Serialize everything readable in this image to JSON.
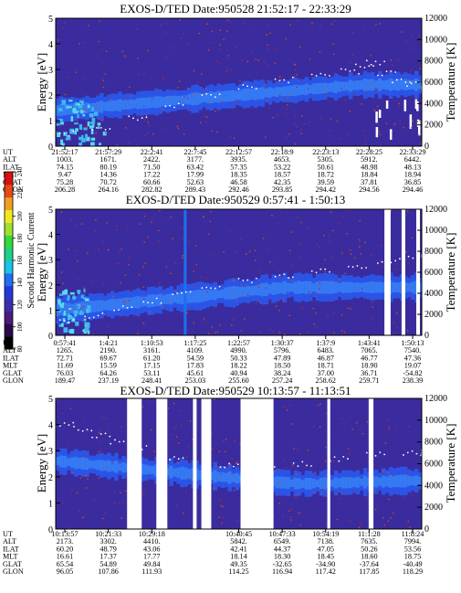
{
  "chart_data": [
    {
      "type": "heatmap",
      "title": "EXOS-D/TED  Date:950528  21:52:17 - 22:33:29",
      "ylabel": "Energy [eV]",
      "ylabel_right": "Temperature [K]",
      "ylim": [
        0,
        5
      ],
      "y_ticks": [
        "0",
        "1",
        "2",
        "3",
        "4",
        "5"
      ],
      "y2lim": [
        0,
        12000
      ],
      "y2_ticks": [
        "0",
        "2000",
        "4000",
        "6000",
        "8000",
        "10000",
        "12000"
      ],
      "ephemeris": {
        "labels": [
          "UT",
          "ALT",
          "ILAT",
          "MLT",
          "GLAT",
          "GLON"
        ],
        "columns": [
          [
            "21:52:17",
            "1003.",
            "74.15",
            "9.47",
            "75.28",
            "206.28"
          ],
          [
            "21:57:29",
            "1671.",
            "80.19",
            "14.36",
            "70.72",
            "264.16"
          ],
          [
            "22:2:41",
            "2422.",
            "71.50",
            "17.22",
            "60.66",
            "282.82"
          ],
          [
            "22:7:45",
            "3177.",
            "63.42",
            "17.99",
            "52.63",
            "289.43"
          ],
          [
            "22:12:57",
            "3935.",
            "57.35",
            "18.35",
            "46.58",
            "292.46"
          ],
          [
            "22:18:9",
            "4653.",
            "53.22",
            "18.57",
            "42.35",
            "293.85"
          ],
          [
            "22:23:13",
            "5305.",
            "50.61",
            "18.72",
            "39.59",
            "294.42"
          ],
          [
            "22:28:25",
            "5912.",
            "48.98",
            "18.84",
            "37.81",
            "294.56"
          ],
          [
            "22:33:29",
            "6442.",
            "48.13",
            "18.94",
            "36.85",
            "294.46"
          ]
        ]
      },
      "temperature_trace_k": [
        [
          0.0,
          1200
        ],
        [
          0.1,
          1500
        ],
        [
          0.2,
          2700
        ],
        [
          0.3,
          3800
        ],
        [
          0.4,
          4800
        ],
        [
          0.5,
          5500
        ],
        [
          0.6,
          6200
        ],
        [
          0.7,
          6700
        ],
        [
          0.78,
          7000
        ],
        [
          0.82,
          7500
        ],
        [
          0.85,
          7800
        ],
        [
          0.88,
          6800
        ],
        [
          0.92,
          6200
        ],
        [
          0.96,
          5800
        ],
        [
          1.0,
          5300
        ]
      ]
    },
    {
      "type": "heatmap",
      "title": "EXOS-D/TED  Date:950529  0:57:41 - 1:50:13",
      "ylabel": "Energy [eV]",
      "ylabel_right": "Temperature [K]",
      "ylim": [
        0,
        5
      ],
      "y_ticks": [
        "0",
        "1",
        "2",
        "3",
        "4",
        "5"
      ],
      "y2lim": [
        0,
        12000
      ],
      "y2_ticks": [
        "0",
        "2000",
        "4000",
        "6000",
        "8000",
        "10000",
        "12000"
      ],
      "ephemeris": {
        "labels": [
          "UT",
          "ALT",
          "ILAT",
          "MLT",
          "GLAT",
          "GLON"
        ],
        "columns": [
          [
            "0:57:41",
            "1265.",
            "72.71",
            "11.69",
            "76.03",
            "189.47"
          ],
          [
            "1:4:21",
            "2190.",
            "69.67",
            "15.59",
            "64.26",
            "237.19"
          ],
          [
            "1:10:53",
            "3161.",
            "61.20",
            "17.15",
            "53.11",
            "248.41"
          ],
          [
            "1:17:25",
            "4109.",
            "54.59",
            "17.83",
            "45.61",
            "253.03"
          ],
          [
            "1:22:57",
            "4990.",
            "50.33",
            "18.22",
            "40.94",
            "255.60"
          ],
          [
            "1:30:37",
            "5796.",
            "47.89",
            "18.50",
            "38.24",
            "257.24"
          ],
          [
            "1:37:9",
            "6483.",
            "46.87",
            "18.71",
            "37.00",
            "258.62"
          ],
          [
            "1:43:41",
            "7065.",
            "46.77",
            "18.90",
            "36.71",
            "259.71"
          ],
          [
            "1:50:13",
            "7540.",
            "47.36",
            "19.07",
            "-54.82",
            "238.39"
          ]
        ]
      },
      "temperature_trace_k": [
        [
          0.0,
          1400
        ],
        [
          0.08,
          1900
        ],
        [
          0.16,
          2600
        ],
        [
          0.24,
          3300
        ],
        [
          0.32,
          4000
        ],
        [
          0.4,
          4600
        ],
        [
          0.5,
          5200
        ],
        [
          0.6,
          5700
        ],
        [
          0.7,
          6100
        ],
        [
          0.8,
          6600
        ],
        [
          0.88,
          7000
        ],
        [
          0.94,
          7400
        ],
        [
          1.0,
          7600
        ]
      ]
    },
    {
      "type": "heatmap",
      "title": "EXOS-D/TED  Date:950529  10:13:57 - 11:13:51",
      "ylabel": "Energy [eV]",
      "ylabel_right": "Temperature [K]",
      "ylim": [
        0,
        5
      ],
      "y_ticks": [
        "0",
        "1",
        "2",
        "3",
        "4",
        "5"
      ],
      "y2lim": [
        0,
        12000
      ],
      "y2_ticks": [
        "0",
        "2000",
        "4000",
        "6000",
        "8000",
        "10000",
        "12000"
      ],
      "ephemeris": {
        "labels": [
          "UT",
          "ALT",
          "ILAT",
          "MLT",
          "GLAT",
          "GLON"
        ],
        "columns": [
          [
            "10:13:57",
            "2173.",
            "60.20",
            "16.61",
            "65.54",
            "96.05"
          ],
          [
            "10:21:33",
            "3302.",
            "48.79",
            "17.37",
            "54.89",
            "107.86"
          ],
          [
            "10:29:18",
            "4410.",
            "43.06",
            "17.77",
            "49.84",
            "111.93"
          ],
          [
            "",
            "",
            "",
            "",
            "",
            ""
          ],
          [
            "10:40:45",
            "5842.",
            "42.41",
            "18.14",
            "49.35",
            "114.25"
          ],
          [
            "10:47:33",
            "6549.",
            "44.37",
            "18.30",
            "-32.65",
            "116.94"
          ],
          [
            "10:54:19",
            "7138.",
            "47.05",
            "18.45",
            "-34.90",
            "117.42"
          ],
          [
            "11:1:28",
            "7635.",
            "50.26",
            "18.60",
            "-37.64",
            "117.85"
          ],
          [
            "11:8:24",
            "7994.",
            "53.56",
            "18.75",
            "-40.49",
            "118.29"
          ]
        ]
      },
      "temperature_trace_k": [
        [
          0.0,
          9600
        ],
        [
          0.05,
          9200
        ],
        [
          0.1,
          8600
        ],
        [
          0.15,
          8000
        ],
        [
          0.2,
          7400
        ],
        [
          0.3,
          6600
        ],
        [
          0.45,
          5800
        ],
        [
          0.55,
          5600
        ],
        [
          0.65,
          6000
        ],
        [
          0.75,
          6400
        ],
        [
          0.85,
          6800
        ],
        [
          0.95,
          7000
        ],
        [
          1.0,
          7100
        ]
      ]
    }
  ],
  "colorbar": {
    "label": "Second Harmonic Current",
    "ticks": [
      "80",
      "100",
      "120",
      "140",
      "160",
      "180",
      "200",
      "220",
      "240"
    ],
    "colors": [
      "#000000",
      "#2a0a4a",
      "#4b1a7a",
      "#3b2fb0",
      "#2438d8",
      "#1f6ff0",
      "#19c4e8",
      "#1fd08a",
      "#2fdc3a",
      "#a0e030",
      "#f0e820",
      "#f0a020",
      "#e84a18",
      "#d81010"
    ]
  },
  "colors": {
    "background": "#3a2c9e",
    "band": "#2b54e6",
    "band_bright": "#3a8af6",
    "core": "#56dcee",
    "gap": "#ffffff"
  }
}
